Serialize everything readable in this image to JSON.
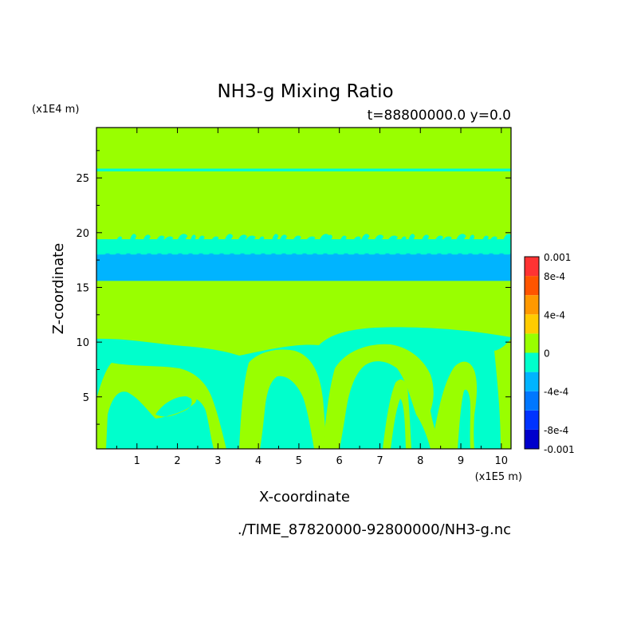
{
  "chart_data": {
    "type": "heatmap",
    "title": "NH3-g Mixing Ratio",
    "subtitle": "t=88800000.0 y=0.0",
    "xlabel": "X-coordinate",
    "ylabel": "Z-coordinate",
    "x_unit": "(x1E5 m)",
    "y_unit": "(x1E4 m)",
    "source_file": "./TIME_87820000-92800000/NH3-g.nc",
    "xlim": [
      0,
      10.24
    ],
    "ylim": [
      0.25,
      29.6
    ],
    "x_ticks": [
      "1",
      "2",
      "3",
      "4",
      "5",
      "6",
      "7",
      "8",
      "9",
      "10"
    ],
    "y_ticks": [
      "5",
      "10",
      "15",
      "20",
      "25"
    ],
    "colorbar": {
      "levels": [
        -0.001,
        -0.0008,
        -0.0006,
        -0.0004,
        -0.0002,
        0,
        0.0002,
        0.0004,
        0.0006,
        0.0008,
        0.001
      ],
      "colors": [
        "#0000cc",
        "#0033ff",
        "#0077ff",
        "#00b4ff",
        "#00ffcc",
        "#99ff00",
        "#ffcc00",
        "#ff9900",
        "#ff5500",
        "#ff3333"
      ],
      "labels": [
        {
          "value": 0.001,
          "text": "0.001"
        },
        {
          "value": 0.0008,
          "text": "8e-4"
        },
        {
          "value": 0.0004,
          "text": "4e-4"
        },
        {
          "value": 0,
          "text": "0"
        },
        {
          "value": -0.0004,
          "text": "-4e-4"
        },
        {
          "value": -0.0008,
          "text": "-8e-4"
        },
        {
          "value": -0.001,
          "text": "-0.001"
        }
      ]
    },
    "field_colors": {
      "zero": "#99ff00",
      "slightly_negative": "#00ffcc",
      "moderately_negative": "#00b4ff"
    },
    "bands": [
      {
        "z_from": 0.25,
        "z_to": 29.6,
        "class": "zero"
      },
      {
        "z_from": 15.6,
        "z_to": 19.4,
        "class": "slightly_negative"
      },
      {
        "z_from": 15.6,
        "z_to": 18.0,
        "class": "moderately_negative"
      },
      {
        "z_from": 25.6,
        "z_to": 25.85,
        "class": "slightly_negative"
      }
    ]
  }
}
